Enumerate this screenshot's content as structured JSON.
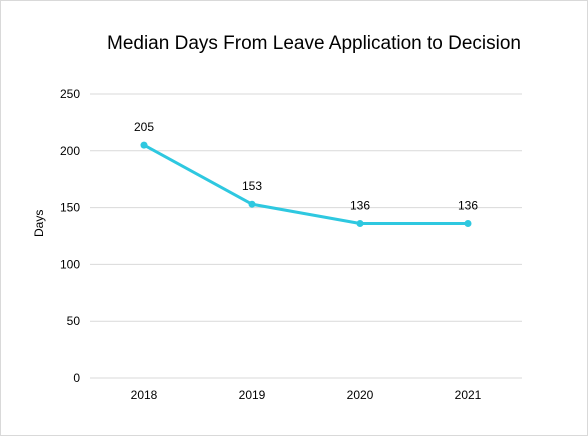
{
  "chart_data": {
    "type": "line",
    "title": "Median Days From Leave Application to Decision",
    "xlabel": "",
    "ylabel": "Days",
    "categories": [
      "2018",
      "2019",
      "2020",
      "2021"
    ],
    "series": [
      {
        "values": [
          205,
          153,
          136,
          136
        ]
      }
    ],
    "ylim": [
      0,
      250
    ],
    "yticks": [
      0,
      50,
      100,
      150,
      200,
      250
    ],
    "ytick_labels": [
      "0",
      "50",
      "100",
      "150",
      "200",
      "250"
    ],
    "data_labels": [
      "205",
      "153",
      "136",
      "136"
    ],
    "grid": true,
    "legend": "none",
    "line_color": "#2ec8e0",
    "grid_color": "#d9d9d9"
  }
}
